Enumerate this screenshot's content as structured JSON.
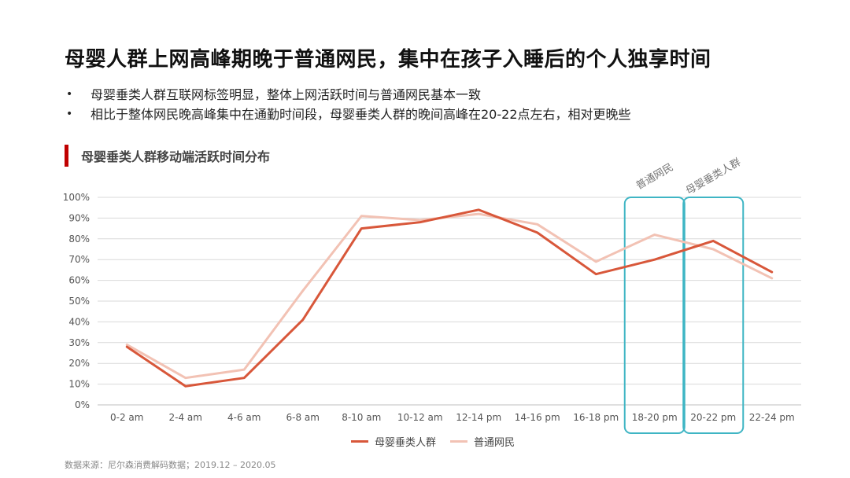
{
  "title": "母婴人群上网高峰期晚于普通网民，集中在孩子入睡后的个人独享时间",
  "bullets": [
    "母婴垂类人群互联网标签明显，整体上网活跃时间与普通网民基本一致",
    "相比于整体网民晚高峰集中在通勤时间段，母婴垂类人群的晚间高峰在20-22点左右，相对更晚些"
  ],
  "chart_heading": "母婴垂类人群移动端活跃时间分布",
  "annotations": [
    "普通网民",
    "母婴垂类人群"
  ],
  "colors": {
    "accent": "#c00000",
    "series_mother": "#d8573a",
    "series_general": "#f2c2b4",
    "highlight_box": "#3fb5c4",
    "gridline": "#d9d9d9"
  },
  "source": "数据来源：尼尔森消费解码数据；2019.12 – 2020.05",
  "chart_data": {
    "type": "line",
    "categories": [
      "0-2 am",
      "2-4 am",
      "4-6 am",
      "6-8 am",
      "8-10 am",
      "10-12 am",
      "12-14 pm",
      "14-16 pm",
      "16-18 pm",
      "18-20 pm",
      "20-22 pm",
      "22-24 pm"
    ],
    "y_tick_labels": [
      "0%",
      "10%",
      "20%",
      "30%",
      "40%",
      "50%",
      "60%",
      "70%",
      "80%",
      "90%",
      "100%"
    ],
    "ylim": [
      0,
      100
    ],
    "grid": true,
    "legend_position": "bottom",
    "highlighted_categories": [
      "18-20 pm",
      "20-22 pm"
    ],
    "series": [
      {
        "name": "母婴垂类人群",
        "values": [
          28,
          9,
          13,
          41,
          85,
          88,
          94,
          83,
          63,
          70,
          79,
          64
        ]
      },
      {
        "name": "普通网民",
        "values": [
          29,
          13,
          17,
          55,
          91,
          89,
          92,
          87,
          69,
          82,
          75,
          61
        ]
      }
    ]
  }
}
